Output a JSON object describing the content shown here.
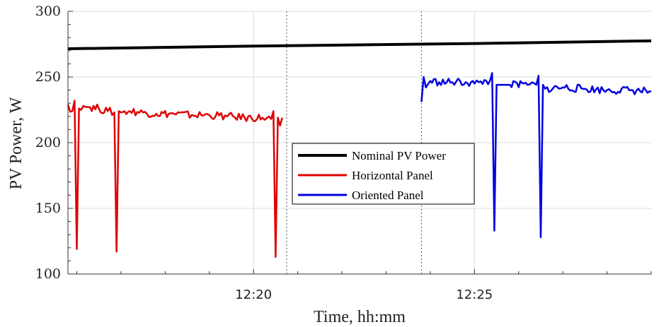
{
  "chart_data": {
    "type": "line",
    "xlabel": "Time, hh:mm",
    "ylabel": "PV Power, W",
    "ylim": [
      100,
      300
    ],
    "xlim_minutes": [
      735.8,
      749.0
    ],
    "x_ticks": [
      {
        "value": 740,
        "label": "12:20"
      },
      {
        "value": 745,
        "label": "12:25"
      }
    ],
    "y_ticks": [
      {
        "value": 100,
        "label": "100"
      },
      {
        "value": 150,
        "label": "150"
      },
      {
        "value": 200,
        "label": "200"
      },
      {
        "value": 250,
        "label": "250"
      },
      {
        "value": 300,
        "label": "300"
      }
    ],
    "grid": true,
    "legend_position": "center",
    "vertical_markers": [
      740.75,
      743.8
    ],
    "series": [
      {
        "name": "Nominal PV Power",
        "color": "#000000",
        "x": [
          735.8,
          740.0,
          745.0,
          749.0
        ],
        "y": [
          271.5,
          273.5,
          275.5,
          277.5
        ]
      },
      {
        "name": "Horizontal Panel",
        "color": "#e00000",
        "x": [
          735.8,
          735.9,
          735.95,
          736.0,
          736.05,
          736.1,
          736.15,
          736.3,
          736.5,
          736.7,
          736.85,
          736.9,
          736.95,
          737.0,
          737.2,
          737.5,
          737.8,
          738.2,
          738.6,
          739.0,
          739.4,
          739.8,
          740.2,
          740.4,
          740.45,
          740.5,
          740.55,
          740.6,
          740.65
        ],
        "y": [
          229,
          224,
          232,
          119,
          226,
          225,
          228,
          227,
          226,
          224,
          223,
          117,
          224,
          223,
          224,
          223,
          222,
          222,
          221,
          221,
          220,
          219,
          219,
          218,
          224,
          113,
          219,
          213,
          219
        ]
      },
      {
        "name": "Oriented Panel",
        "color": "#0000e0",
        "x": [
          743.8,
          743.85,
          743.9,
          744.0,
          744.2,
          744.5,
          744.8,
          745.0,
          745.1,
          745.35,
          745.4,
          745.45,
          745.5,
          745.8,
          746.2,
          746.4,
          746.45,
          746.5,
          746.55,
          746.6,
          747.0,
          747.5,
          748.0,
          748.5,
          749.0
        ],
        "y": [
          231,
          250,
          242,
          247,
          246,
          246,
          246,
          245,
          246,
          247,
          253,
          133,
          244,
          244,
          244,
          244,
          251,
          128,
          244,
          241,
          242,
          241,
          240,
          240,
          239
        ]
      }
    ]
  }
}
